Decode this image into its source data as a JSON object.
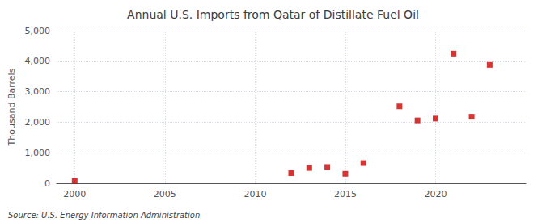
{
  "chart_data": {
    "type": "scatter",
    "title": "Annual U.S. Imports from Qatar of Distillate Fuel Oil",
    "ylabel": "Thousand Barrels",
    "annotations": [
      "Source: U.S. Energy Information Administration"
    ],
    "x": [
      2000,
      2012,
      2013,
      2014,
      2015,
      2016,
      2018,
      2019,
      2020,
      2021,
      2022,
      2023
    ],
    "values": [
      75,
      330,
      500,
      530,
      310,
      660,
      2520,
      2060,
      2120,
      4250,
      2180,
      3880
    ],
    "color": "#cc0000",
    "marker": "square",
    "xlim": [
      1999,
      2025
    ],
    "xticks": [
      2000,
      2005,
      2010,
      2015,
      2020
    ],
    "ylim": [
      0,
      5000
    ],
    "yticks": [
      0,
      {
        "value": 1000,
        "label": "1,000"
      },
      {
        "value": 2000,
        "label": "2,000"
      },
      {
        "value": 3000,
        "label": "3,000"
      },
      {
        "value": 4000,
        "label": "4,000"
      },
      {
        "value": 5000,
        "label": "5,000"
      }
    ],
    "grid": true
  }
}
